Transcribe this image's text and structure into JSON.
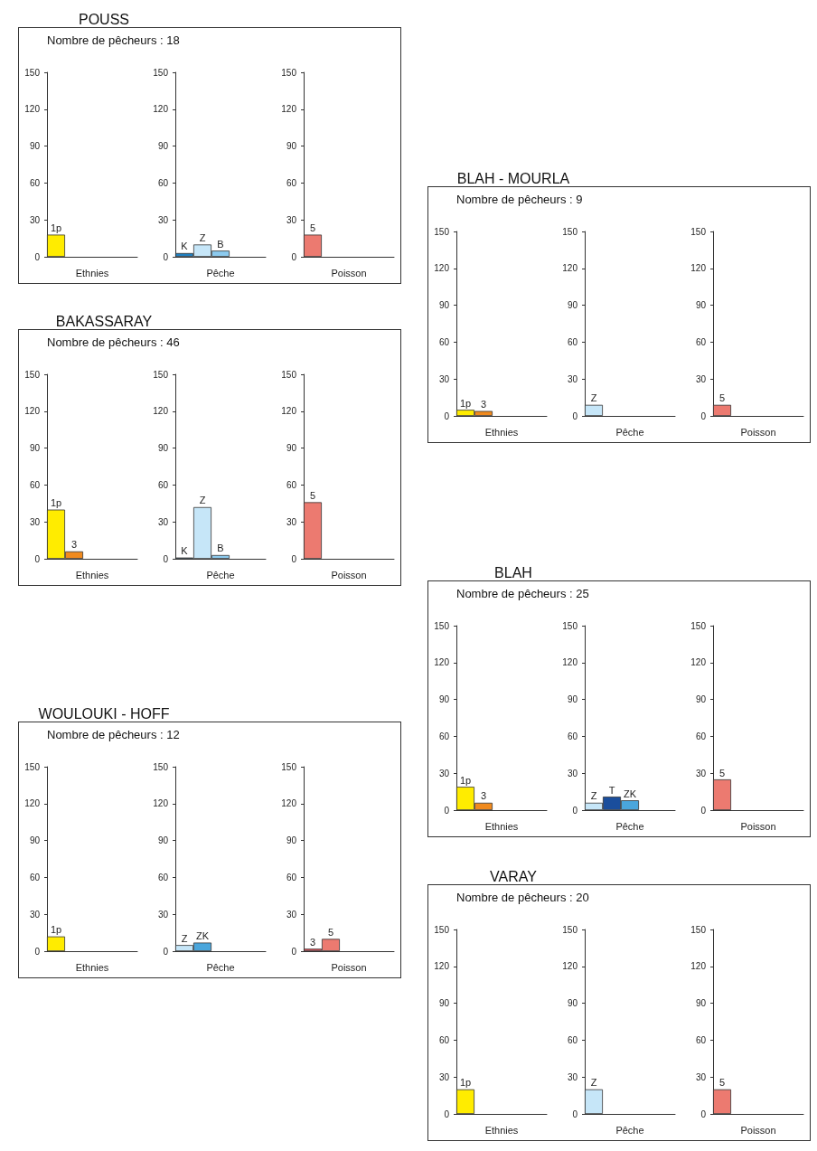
{
  "chart_data": [
    {
      "type": "bar",
      "title": "POUSS",
      "annotations": [
        "Nombre de pêcheurs : 18"
      ],
      "xlabel": "Ethnies",
      "categories": [
        null
      ],
      "ylim": [
        0,
        150
      ],
      "yticks": [
        0,
        30,
        60,
        90,
        120,
        150
      ],
      "series": [
        {
          "name": "1p",
          "color": "#ffec00",
          "values": [
            18
          ]
        }
      ]
    },
    {
      "type": "bar",
      "xlabel": "Pêche",
      "categories": [
        null
      ],
      "ylim": [
        0,
        150
      ],
      "yticks": [
        0,
        30,
        60,
        90,
        120,
        150
      ],
      "series": [
        {
          "name": "K",
          "color": "#1f7fc0",
          "values": [
            3
          ]
        },
        {
          "name": "Z",
          "color": "#c6e6f8",
          "values": [
            10
          ]
        },
        {
          "name": "B",
          "color": "#8ccaee",
          "values": [
            5
          ]
        }
      ]
    },
    {
      "type": "bar",
      "xlabel": "Poisson",
      "categories": [
        null
      ],
      "ylim": [
        0,
        150
      ],
      "yticks": [
        0,
        30,
        60,
        90,
        120,
        150
      ],
      "series": [
        {
          "name": "5",
          "color": "#ec7a70",
          "values": [
            18
          ]
        }
      ]
    },
    {
      "type": "bar",
      "title": "BLAH - MOURLA",
      "annotations": [
        "Nombre de pêcheurs : 9"
      ],
      "xlabel": "Ethnies",
      "categories": [
        null
      ],
      "ylim": [
        0,
        150
      ],
      "yticks": [
        0,
        30,
        60,
        90,
        120,
        150
      ],
      "series": [
        {
          "name": "1p",
          "color": "#ffec00",
          "values": [
            5
          ]
        },
        {
          "name": "3",
          "color": "#f08a1e",
          "values": [
            4
          ]
        }
      ]
    },
    {
      "type": "bar",
      "xlabel": "Pêche",
      "categories": [
        null
      ],
      "ylim": [
        0,
        150
      ],
      "yticks": [
        0,
        30,
        60,
        90,
        120,
        150
      ],
      "series": [
        {
          "name": "Z",
          "color": "#c6e6f8",
          "values": [
            9
          ]
        }
      ]
    },
    {
      "type": "bar",
      "xlabel": "Poisson",
      "categories": [
        null
      ],
      "ylim": [
        0,
        150
      ],
      "yticks": [
        0,
        30,
        60,
        90,
        120,
        150
      ],
      "series": [
        {
          "name": "5",
          "color": "#ec7a70",
          "values": [
            9
          ]
        }
      ]
    },
    {
      "type": "bar",
      "title": "BAKASSARAY",
      "annotations": [
        "Nombre de pêcheurs : 46"
      ],
      "xlabel": "Ethnies",
      "categories": [
        null
      ],
      "ylim": [
        0,
        150
      ],
      "yticks": [
        0,
        30,
        60,
        90,
        120,
        150
      ],
      "series": [
        {
          "name": "1p",
          "color": "#ffec00",
          "values": [
            40
          ]
        },
        {
          "name": "3",
          "color": "#f08a1e",
          "values": [
            6
          ]
        }
      ]
    },
    {
      "type": "bar",
      "xlabel": "Pêche",
      "categories": [
        null
      ],
      "ylim": [
        0,
        150
      ],
      "yticks": [
        0,
        30,
        60,
        90,
        120,
        150
      ],
      "series": [
        {
          "name": "K",
          "color": "#1f7fc0",
          "values": [
            1
          ]
        },
        {
          "name": "Z",
          "color": "#c6e6f8",
          "values": [
            42
          ]
        },
        {
          "name": "B",
          "color": "#8ccaee",
          "values": [
            3
          ]
        }
      ]
    },
    {
      "type": "bar",
      "xlabel": "Poisson",
      "categories": [
        null
      ],
      "ylim": [
        0,
        150
      ],
      "yticks": [
        0,
        30,
        60,
        90,
        120,
        150
      ],
      "series": [
        {
          "name": "5",
          "color": "#ec7a70",
          "values": [
            46
          ]
        }
      ]
    },
    {
      "type": "bar",
      "title": "BLAH",
      "annotations": [
        "Nombre de pêcheurs : 25"
      ],
      "xlabel": "Ethnies",
      "categories": [
        null
      ],
      "ylim": [
        0,
        150
      ],
      "yticks": [
        0,
        30,
        60,
        90,
        120,
        150
      ],
      "series": [
        {
          "name": "1p",
          "color": "#ffec00",
          "values": [
            19
          ]
        },
        {
          "name": "3",
          "color": "#f08a1e",
          "values": [
            6
          ]
        }
      ]
    },
    {
      "type": "bar",
      "xlabel": "Pêche",
      "categories": [
        null
      ],
      "ylim": [
        0,
        150
      ],
      "yticks": [
        0,
        30,
        60,
        90,
        120,
        150
      ],
      "series": [
        {
          "name": "Z",
          "color": "#c6e6f8",
          "values": [
            6
          ]
        },
        {
          "name": "T",
          "color": "#1a4e9c",
          "values": [
            11
          ]
        },
        {
          "name": "ZK",
          "color": "#4aa6dc",
          "values": [
            8
          ]
        }
      ]
    },
    {
      "type": "bar",
      "xlabel": "Poisson",
      "categories": [
        null
      ],
      "ylim": [
        0,
        150
      ],
      "yticks": [
        0,
        30,
        60,
        90,
        120,
        150
      ],
      "series": [
        {
          "name": "5",
          "color": "#ec7a70",
          "values": [
            25
          ]
        }
      ]
    },
    {
      "type": "bar",
      "title": "WOULOUKI - HOFF",
      "annotations": [
        "Nombre de pêcheurs : 12"
      ],
      "xlabel": "Ethnies",
      "categories": [
        null
      ],
      "ylim": [
        0,
        150
      ],
      "yticks": [
        0,
        30,
        60,
        90,
        120,
        150
      ],
      "series": [
        {
          "name": "1p",
          "color": "#ffec00",
          "values": [
            12
          ]
        }
      ]
    },
    {
      "type": "bar",
      "xlabel": "Pêche",
      "categories": [
        null
      ],
      "ylim": [
        0,
        150
      ],
      "yticks": [
        0,
        30,
        60,
        90,
        120,
        150
      ],
      "series": [
        {
          "name": "Z",
          "color": "#c6e6f8",
          "values": [
            5
          ]
        },
        {
          "name": "ZK",
          "color": "#4aa6dc",
          "values": [
            7
          ]
        }
      ]
    },
    {
      "type": "bar",
      "xlabel": "Poisson",
      "categories": [
        null
      ],
      "ylim": [
        0,
        150
      ],
      "yticks": [
        0,
        30,
        60,
        90,
        120,
        150
      ],
      "series": [
        {
          "name": "3",
          "color": "#e0505a",
          "values": [
            2
          ]
        },
        {
          "name": "5",
          "color": "#ec7a70",
          "values": [
            10
          ]
        }
      ]
    },
    {
      "type": "bar",
      "title": "VARAY",
      "annotations": [
        "Nombre de pêcheurs : 20"
      ],
      "xlabel": "Ethnies",
      "categories": [
        null
      ],
      "ylim": [
        0,
        150
      ],
      "yticks": [
        0,
        30,
        60,
        90,
        120,
        150
      ],
      "series": [
        {
          "name": "1p",
          "color": "#ffec00",
          "values": [
            20
          ]
        }
      ]
    },
    {
      "type": "bar",
      "xlabel": "Pêche",
      "categories": [
        null
      ],
      "ylim": [
        0,
        150
      ],
      "yticks": [
        0,
        30,
        60,
        90,
        120,
        150
      ],
      "series": [
        {
          "name": "Z",
          "color": "#c6e6f8",
          "values": [
            20
          ]
        }
      ]
    },
    {
      "type": "bar",
      "xlabel": "Poisson",
      "categories": [
        null
      ],
      "ylim": [
        0,
        150
      ],
      "yticks": [
        0,
        30,
        60,
        90,
        120,
        150
      ],
      "series": [
        {
          "name": "5",
          "color": "#ec7a70",
          "values": [
            20
          ]
        }
      ]
    }
  ]
}
